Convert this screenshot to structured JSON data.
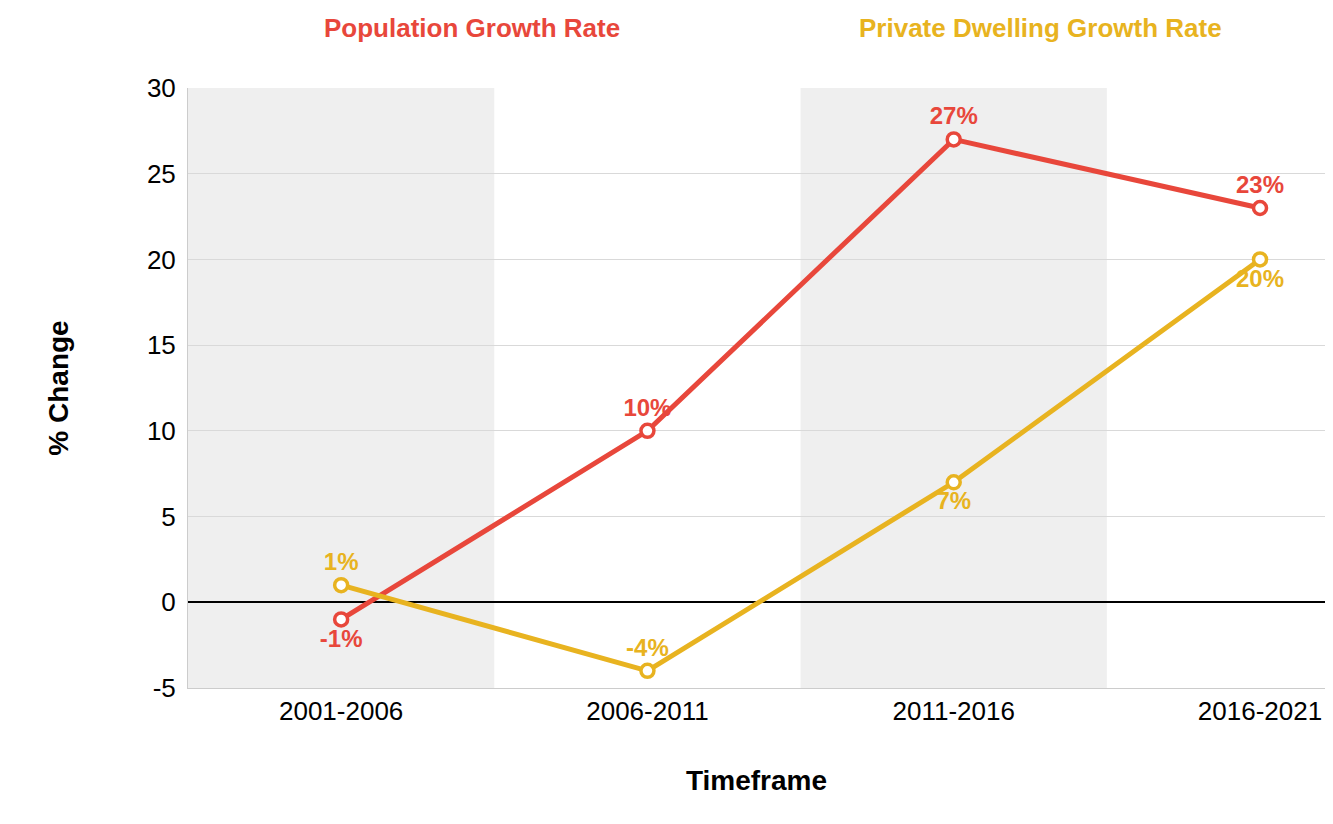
{
  "chart_data": {
    "type": "line",
    "x_label": "Timeframe",
    "y_label": "% Change",
    "categories": [
      "2001-2006",
      "2006-2011",
      "2011-2016",
      "2016-2021"
    ],
    "series": [
      {
        "name": "Population Growth Rate",
        "color": "#e8473b",
        "marker": "circle",
        "values": [
          -1,
          10,
          27,
          23
        ],
        "value_labels": [
          "-1%",
          "10%",
          "27%",
          "23%"
        ]
      },
      {
        "name": "Private Dwelling Growth Rate",
        "color": "#e8b320",
        "marker": "circle",
        "values": [
          1,
          -4,
          7,
          20
        ],
        "value_labels": [
          "1%",
          "-4%",
          "7%",
          "20%"
        ]
      }
    ],
    "ylim": [
      -5,
      30
    ],
    "yticks": [
      -5,
      0,
      5,
      10,
      15,
      20,
      25,
      30
    ],
    "grid": true,
    "data_labels": true,
    "legend": "top"
  }
}
